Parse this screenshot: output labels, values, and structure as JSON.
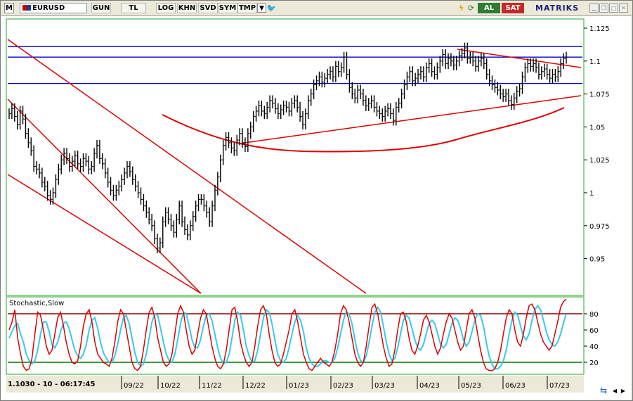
{
  "toolbar": {
    "app_letter": "M",
    "symbol": "EURUSD",
    "buttons": [
      "GUN",
      "TL",
      "LOG",
      "KHN",
      "SVD",
      "SYM",
      "TMP"
    ],
    "buy_label": "AL",
    "sell_label": "SAT",
    "brand": "MATRIKS"
  },
  "status": {
    "readout": "1.1030 - 10 - 06:17:45"
  },
  "colors": {
    "price": "#000000",
    "trendline": "#e00000",
    "horizontal": "#0000cc",
    "stoch_k": "#e00000",
    "stoch_d": "#33ccee",
    "overbought_line": "#8b0000",
    "oversold_line": "#007700",
    "panel_border": "#22aa22"
  },
  "chart_data": [
    {
      "type": "line",
      "title": "",
      "x_tick_labels": [
        "09/22",
        "10/22",
        "11/22",
        "12/22",
        "01/23",
        "02/23",
        "03/23",
        "04/23",
        "05/23",
        "06/23",
        "07/23"
      ],
      "y_tick_labels": [
        "1.125",
        "1.1",
        "1.075",
        "1.05",
        "1.025",
        "1",
        "0.975",
        "0.95"
      ],
      "ylim": [
        0.93,
        1.13
      ],
      "grid": false,
      "series": [
        {
          "values": [
            1.06,
            1.064,
            1.058,
            1.052,
            1.062,
            1.056,
            1.045,
            1.038,
            1.032,
            1.02,
            1.018,
            1.015,
            1.008,
            1.005,
            0.998,
            0.995,
            1.0,
            1.01,
            1.018,
            1.025,
            1.03,
            1.026,
            1.02,
            1.024,
            1.028,
            1.022,
            1.02,
            1.026,
            1.024,
            1.018,
            1.02,
            1.03,
            1.036,
            1.026,
            1.022,
            1.015,
            1.008,
            1.002,
            0.998,
            1.002,
            1.005,
            1.01,
            1.015,
            1.02,
            1.016,
            1.01,
            1.005,
            1.0,
            0.995,
            0.99,
            0.985,
            0.98,
            0.975,
            0.965,
            0.958,
            0.962,
            0.978,
            0.985,
            0.98,
            0.975,
            0.97,
            0.98,
            0.99,
            0.978,
            0.972,
            0.968,
            0.975,
            0.982,
            0.99,
            0.995,
            0.995,
            0.99,
            0.985,
            0.978,
            0.99,
            1.002,
            1.012,
            1.025,
            1.036,
            1.042,
            1.038,
            1.034,
            1.032,
            1.04,
            1.045,
            1.038,
            1.035,
            1.045,
            1.05,
            1.058,
            1.062,
            1.066,
            1.062,
            1.06,
            1.065,
            1.07,
            1.068,
            1.064,
            1.06,
            1.063,
            1.066,
            1.065,
            1.062,
            1.068,
            1.07,
            1.065,
            1.058,
            1.052,
            1.06,
            1.07,
            1.075,
            1.082,
            1.085,
            1.088,
            1.084,
            1.087,
            1.09,
            1.092,
            1.088,
            1.096,
            1.092,
            1.095,
            1.103,
            1.09,
            1.08,
            1.075,
            1.072,
            1.078,
            1.075,
            1.07,
            1.066,
            1.068,
            1.07,
            1.065,
            1.062,
            1.06,
            1.058,
            1.062,
            1.064,
            1.06,
            1.055,
            1.065,
            1.068,
            1.075,
            1.082,
            1.088,
            1.092,
            1.085,
            1.087,
            1.09,
            1.092,
            1.088,
            1.095,
            1.098,
            1.092,
            1.09,
            1.095,
            1.1,
            1.105,
            1.098,
            1.102,
            1.1,
            1.097,
            1.1,
            1.104,
            1.106,
            1.11,
            1.102,
            1.103,
            1.1,
            1.096,
            1.1,
            1.102,
            1.098,
            1.09,
            1.085,
            1.082,
            1.08,
            1.078,
            1.075,
            1.073,
            1.075,
            1.07,
            1.067,
            1.072,
            1.077,
            1.079,
            1.088,
            1.095,
            1.098,
            1.096,
            1.098,
            1.095,
            1.09,
            1.092,
            1.094,
            1.09,
            1.087,
            1.09,
            1.088,
            1.092,
            1.098,
            1.102,
            1.103
          ]
        }
      ]
    },
    {
      "type": "line",
      "title": "Stochastic,Slow",
      "y_tick_labels": [
        "80",
        "60",
        "40",
        "20"
      ],
      "ylim": [
        0,
        100
      ],
      "reference_lines": [
        80,
        20
      ],
      "grid": false,
      "series": [
        {
          "values": [
            60,
            70,
            85,
            50,
            30,
            15,
            10,
            12,
            25,
            55,
            82,
            78,
            60,
            40,
            30,
            35,
            55,
            75,
            82,
            65,
            45,
            30,
            20,
            18,
            22,
            40,
            65,
            80,
            85,
            70,
            45,
            30,
            25,
            20,
            18,
            15,
            25,
            45,
            70,
            85,
            80,
            60,
            40,
            20,
            12,
            10,
            15,
            35,
            60,
            82,
            88,
            75,
            50,
            35,
            20,
            15,
            18,
            30,
            55,
            80,
            90,
            82,
            60,
            40,
            30,
            35,
            55,
            75,
            85,
            80,
            60,
            40,
            25,
            15,
            12,
            18,
            35,
            60,
            85,
            88,
            70,
            45,
            30,
            20,
            15,
            20,
            40,
            65,
            85,
            90,
            80,
            55,
            35,
            20,
            15,
            18,
            30,
            45,
            60,
            80,
            85,
            70,
            50,
            30,
            20,
            12,
            10,
            15,
            20,
            25,
            20,
            18,
            15,
            20,
            35,
            55,
            80,
            90,
            85,
            70,
            50,
            30,
            20,
            15,
            20,
            40,
            65,
            88,
            92,
            80,
            60,
            40,
            25,
            15,
            18,
            35,
            60,
            80,
            82,
            70,
            50,
            35,
            30,
            40,
            55,
            72,
            78,
            70,
            55,
            40,
            30,
            38,
            55,
            70,
            80,
            75,
            60,
            45,
            35,
            40,
            60,
            80,
            85,
            75,
            55,
            35,
            20,
            12,
            10,
            8,
            12,
            20,
            35,
            55,
            75,
            85,
            80,
            60,
            45,
            40,
            55,
            75,
            90,
            92,
            85,
            70,
            55,
            45,
            40,
            35,
            40,
            55,
            70,
            88,
            95,
            98
          ]
        },
        {
          "values": [
            50,
            58,
            65,
            68,
            55,
            45,
            30,
            22,
            18,
            22,
            35,
            55,
            70,
            70,
            58,
            42,
            38,
            45,
            58,
            68,
            70,
            62,
            48,
            35,
            28,
            25,
            30,
            42,
            60,
            72,
            75,
            62,
            45,
            32,
            25,
            20,
            20,
            28,
            42,
            60,
            75,
            78,
            68,
            50,
            32,
            20,
            15,
            18,
            30,
            50,
            70,
            80,
            78,
            62,
            45,
            30,
            22,
            20,
            30,
            48,
            68,
            82,
            80,
            65,
            48,
            38,
            38,
            48,
            65,
            78,
            80,
            72,
            55,
            38,
            25,
            18,
            20,
            30,
            50,
            72,
            82,
            78,
            60,
            40,
            28,
            20,
            22,
            35,
            55,
            75,
            85,
            82,
            68,
            48,
            30,
            22,
            20,
            25,
            38,
            55,
            70,
            78,
            72,
            58,
            38,
            25,
            18,
            15,
            15,
            18,
            22,
            22,
            20,
            20,
            25,
            38,
            55,
            72,
            82,
            80,
            68,
            48,
            32,
            22,
            20,
            28,
            45,
            65,
            82,
            88,
            82,
            65,
            45,
            30,
            22,
            25,
            38,
            55,
            72,
            78,
            75,
            62,
            48,
            38,
            35,
            42,
            55,
            68,
            72,
            68,
            55,
            42,
            38,
            42,
            55,
            68,
            75,
            72,
            62,
            48,
            40,
            45,
            58,
            72,
            80,
            78,
            65,
            45,
            28,
            18,
            12,
            12,
            15,
            22,
            35,
            55,
            72,
            82,
            78,
            65,
            52,
            48,
            55,
            72,
            85,
            90,
            85,
            72,
            58,
            48,
            42,
            40,
            45,
            55,
            68,
            80
          ]
        }
      ]
    }
  ]
}
